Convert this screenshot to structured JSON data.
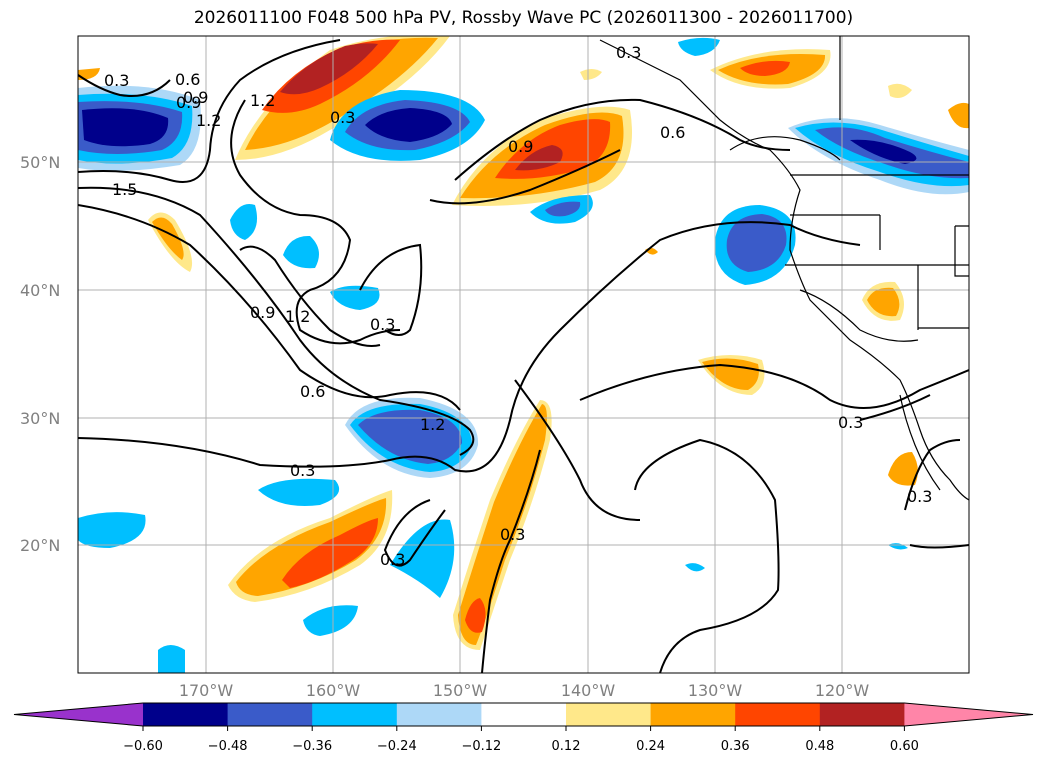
{
  "title": "2026011100 F048 500 hPa PV, Rossby Wave PC (2026011300 - 2026011700)",
  "lat_labels": [
    "50°N",
    "40°N",
    "30°N",
    "20°N"
  ],
  "lon_labels": [
    "170°W",
    "160°W",
    "150°W",
    "140°W",
    "130°W",
    "120°W"
  ],
  "contour_labels": [
    "0.3",
    "0.6",
    "0.9",
    "1.2",
    "0.3",
    "1.5",
    "0.3",
    "0.9",
    "0.6",
    "0.9",
    "1.2",
    "0.3",
    "0.6",
    "1.2",
    "0.3",
    "0.3",
    "0.3",
    "0.3",
    "0.3",
    "1.2",
    "0.9"
  ],
  "colorbar": {
    "ticks": [
      "−0.60",
      "−0.48",
      "−0.36",
      "−0.24",
      "−0.12",
      "0.12",
      "0.24",
      "0.36",
      "0.48",
      "0.60"
    ],
    "colors": [
      "#9932cc",
      "#00008b",
      "#3a5bc9",
      "#00bfff",
      "#add8f7",
      "#ffffff",
      "#ffe88a",
      "#ffa500",
      "#ff4500",
      "#b22222",
      "#ff85a8"
    ]
  },
  "colors": {
    "grid": "#b0b0b0",
    "contour": "#000000",
    "navy": "#00008b",
    "royal": "#3a5bc9",
    "sky": "#00bfff",
    "pale_blue": "#add8f7",
    "pale_yellow": "#ffe88a",
    "orange": "#ffa500",
    "red_orange": "#ff4500",
    "dark_red": "#b22222"
  }
}
